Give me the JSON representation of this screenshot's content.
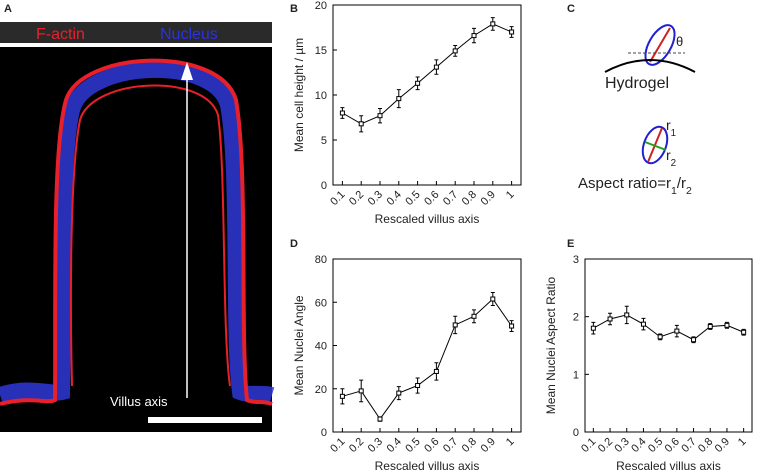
{
  "panel_labels": [
    "A",
    "B",
    "C",
    "D",
    "E"
  ],
  "image_panel": {
    "channels": [
      {
        "name": "F-actin",
        "color": "#e8202a"
      },
      {
        "name": "Nucleus",
        "color": "#2a32e0"
      }
    ],
    "arrow_label": "Villus axis"
  },
  "schematic": {
    "substrate": "Hydrogel",
    "angle": "θ",
    "radius_1": [
      "r",
      "1"
    ],
    "radius_2": [
      "r",
      "2"
    ],
    "formula": [
      "Aspect ratio=r",
      "1",
      "/r",
      "2"
    ]
  },
  "chart_data": [
    {
      "type": "line",
      "x_label": "Rescaled villus axis",
      "y_label": "Mean cell height / µm",
      "x": [
        0.1,
        0.2,
        0.3,
        0.4,
        0.5,
        0.6,
        0.7,
        0.8,
        0.9,
        1
      ],
      "xlim": [
        0.05,
        1.05
      ],
      "xticks": [
        0.1,
        0.2,
        0.3,
        0.4,
        0.5,
        0.6,
        0.7,
        0.8,
        0.9,
        1
      ],
      "ylim": [
        0,
        20
      ],
      "yticks": [
        0,
        5,
        10,
        15,
        20
      ],
      "series": [
        {
          "color": "#000000",
          "values": [
            8.0,
            6.8,
            7.7,
            9.6,
            11.3,
            13.1,
            14.9,
            16.6,
            17.9,
            17.0
          ],
          "errors": [
            0.6,
            0.9,
            0.8,
            1.0,
            0.7,
            0.8,
            0.6,
            0.8,
            0.7,
            0.6
          ]
        }
      ]
    },
    {
      "type": "line",
      "x_label": "Rescaled villus axis",
      "y_label": "Mean Nuclei Angle",
      "x": [
        0.1,
        0.2,
        0.3,
        0.4,
        0.5,
        0.6,
        0.7,
        0.8,
        0.9,
        1
      ],
      "xlim": [
        0.05,
        1.05
      ],
      "xticks": [
        0.1,
        0.2,
        0.3,
        0.4,
        0.5,
        0.6,
        0.7,
        0.8,
        0.9,
        1
      ],
      "ylim": [
        0,
        80
      ],
      "yticks": [
        0,
        20,
        40,
        60,
        80
      ],
      "series": [
        {
          "color": "#000000",
          "values": [
            16.5,
            19,
            6,
            18,
            21.5,
            28,
            49.5,
            53.5,
            61.5,
            49
          ],
          "errors": [
            3.5,
            5,
            1,
            3,
            3.5,
            4,
            4,
            3,
            3,
            2.5
          ]
        }
      ]
    },
    {
      "type": "line",
      "x_label": "Rescaled villus axis",
      "y_label": "Mean Nuclei Aspect Ratio",
      "x": [
        0.1,
        0.2,
        0.3,
        0.4,
        0.5,
        0.6,
        0.7,
        0.8,
        0.9,
        1
      ],
      "xlim": [
        0.05,
        1.05
      ],
      "xticks": [
        0.1,
        0.2,
        0.3,
        0.4,
        0.5,
        0.6,
        0.7,
        0.8,
        0.9,
        1
      ],
      "ylim": [
        0,
        3
      ],
      "yticks": [
        0,
        1,
        2,
        3
      ],
      "series": [
        {
          "color": "#000000",
          "values": [
            1.8,
            1.96,
            2.03,
            1.87,
            1.65,
            1.75,
            1.6,
            1.83,
            1.85,
            1.73
          ],
          "errors": [
            0.1,
            0.1,
            0.15,
            0.1,
            0.05,
            0.1,
            0.05,
            0.05,
            0.05,
            0.05
          ]
        }
      ]
    }
  ]
}
